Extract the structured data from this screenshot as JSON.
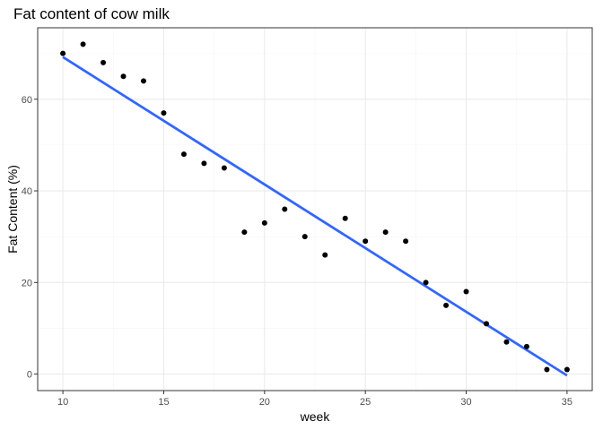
{
  "chart_data": {
    "type": "scatter",
    "title": "Fat content of cow milk",
    "xlabel": "week",
    "ylabel": "Fat Content (%)",
    "xlim": [
      8.75,
      36.25
    ],
    "ylim": [
      -3.6,
      75.6
    ],
    "x_ticks": [
      10,
      15,
      20,
      25,
      30,
      35
    ],
    "y_ticks": [
      0,
      20,
      40,
      60
    ],
    "grid": true,
    "legend": "none",
    "series": [
      {
        "x": [
          10,
          11,
          12,
          13,
          14,
          15,
          16,
          17,
          18,
          19,
          20,
          21,
          22,
          23,
          24,
          25,
          26,
          27,
          28,
          29,
          30,
          31,
          32,
          33,
          34,
          35
        ],
        "y": [
          70,
          72,
          68,
          65,
          64,
          57,
          48,
          46,
          45,
          31,
          33,
          36,
          30,
          26,
          34,
          29,
          31,
          29,
          20,
          15,
          18,
          11,
          7,
          6,
          1,
          1
        ]
      }
    ],
    "trend_line": {
      "type": "linear",
      "x": [
        10,
        35
      ],
      "y": [
        69.2,
        -0.3
      ]
    },
    "colors": {
      "points": "#000000",
      "trend": "#3366FF",
      "panel_border": "#333333",
      "grid_major": "#ebebeb",
      "grid_minor": "#f5f5f5"
    }
  }
}
